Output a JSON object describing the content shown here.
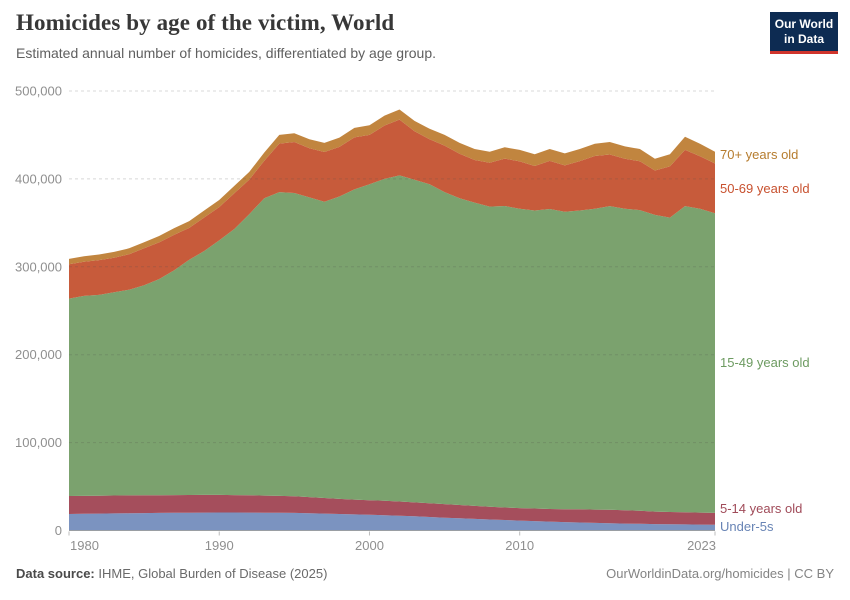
{
  "header": {
    "title": "Homicides by age of the victim, World",
    "subtitle": "Estimated annual number of homicides, differentiated by age group."
  },
  "logo": {
    "line1": "Our World",
    "line2": "in Data",
    "bg_color": "#0d2b52",
    "accent_color": "#d0342c"
  },
  "footer": {
    "source_label": "Data source:",
    "source_value": " IHME, Global Burden of Disease (2025)",
    "credit": "OurWorldinData.org/homicides | CC BY"
  },
  "chart_data": {
    "type": "area",
    "stacked": true,
    "title": "Homicides by age of the victim, World",
    "subtitle": "Estimated annual number of homicides, differentiated by age group.",
    "xlabel": "",
    "ylabel": "",
    "x_domain": [
      1980,
      2023
    ],
    "y_domain": [
      0,
      500000
    ],
    "grid": "horizontal-dashed",
    "legend_position": "right-of-plot",
    "tick_color": "#8f8f8f",
    "x": [
      1980,
      1981,
      1982,
      1983,
      1984,
      1985,
      1986,
      1987,
      1988,
      1989,
      1990,
      1991,
      1992,
      1993,
      1994,
      1995,
      1996,
      1997,
      1998,
      1999,
      2000,
      2001,
      2002,
      2003,
      2004,
      2005,
      2006,
      2007,
      2008,
      2009,
      2010,
      2011,
      2012,
      2013,
      2014,
      2015,
      2016,
      2017,
      2018,
      2019,
      2020,
      2021,
      2022,
      2023
    ],
    "x_ticks": [
      {
        "label": "1980",
        "year": 1980
      },
      {
        "label": "1990",
        "year": 1990
      },
      {
        "label": "2000",
        "year": 2000
      },
      {
        "label": "2010",
        "year": 2010
      },
      {
        "label": "2023",
        "year": 2023
      }
    ],
    "y_ticks": [
      {
        "label": "0",
        "value": 0
      },
      {
        "label": "100,000",
        "value": 100000
      },
      {
        "label": "200,000",
        "value": 200000
      },
      {
        "label": "300,000",
        "value": 300000
      },
      {
        "label": "400,000",
        "value": 400000
      },
      {
        "label": "500,000",
        "value": 500000
      }
    ],
    "series": [
      {
        "name": "Under-5s",
        "color": "#7b93c0",
        "label_color": "#6884b5",
        "values": [
          18800,
          19000,
          19200,
          19400,
          19600,
          19800,
          20000,
          20100,
          20300,
          20400,
          20500,
          20500,
          20400,
          20300,
          20100,
          20000,
          19600,
          19200,
          18800,
          18300,
          17900,
          17400,
          16800,
          16100,
          15400,
          14600,
          13900,
          13200,
          12500,
          11900,
          11300,
          10700,
          10100,
          9600,
          9100,
          8700,
          8300,
          7900,
          7600,
          7300,
          7000,
          6900,
          6700,
          6500
        ]
      },
      {
        "name": "5-14 years old",
        "color": "#a54e5c",
        "label_color": "#a04b59",
        "values": [
          20400,
          20400,
          20400,
          20400,
          20300,
          20200,
          20200,
          20200,
          20100,
          20100,
          20000,
          19800,
          19600,
          19400,
          19300,
          19000,
          18400,
          17800,
          17200,
          16900,
          16600,
          16500,
          16200,
          15900,
          15600,
          15400,
          15100,
          14800,
          14500,
          14300,
          14200,
          14300,
          14400,
          14500,
          15000,
          15100,
          15200,
          15100,
          14900,
          14200,
          14000,
          13900,
          13700,
          13500
        ]
      },
      {
        "name": "15-49 years old",
        "color": "#7ba26e",
        "label_color": "#6d9b61",
        "values": [
          224600,
          227500,
          228400,
          231300,
          234100,
          239000,
          245800,
          255700,
          267600,
          277500,
          289500,
          302700,
          320000,
          338300,
          345600,
          345000,
          341000,
          337000,
          344000,
          352800,
          359500,
          366100,
          371000,
          367000,
          363000,
          355000,
          349000,
          345000,
          341500,
          343000,
          340500,
          339000,
          341200,
          338600,
          339900,
          342200,
          345500,
          343000,
          342000,
          337500,
          335000,
          348200,
          345600,
          341000
        ]
      },
      {
        "name": "50-69 years old",
        "color": "#c75b3b",
        "label_color": "#c8512f",
        "values": [
          39200,
          38900,
          39600,
          39300,
          40200,
          42000,
          41800,
          40500,
          36300,
          38100,
          37900,
          40600,
          39200,
          42700,
          55200,
          58000,
          55800,
          56600,
          56400,
          59200,
          56000,
          60800,
          63500,
          55300,
          51100,
          52900,
          50700,
          48500,
          49800,
          53900,
          53900,
          50700,
          54800,
          52700,
          56200,
          60000,
          58800,
          56900,
          55500,
          50500,
          58200,
          64000,
          59800,
          56500
        ]
      },
      {
        "name": "70+ years old",
        "color": "#c1853f",
        "label_color": "#b67c2e",
        "values": [
          6000,
          6200,
          6400,
          6600,
          6800,
          7000,
          7200,
          7500,
          7700,
          7900,
          8100,
          8400,
          8800,
          9300,
          9800,
          10000,
          10200,
          10400,
          10600,
          10800,
          11000,
          11200,
          11500,
          11700,
          11900,
          12100,
          12300,
          12500,
          12700,
          12900,
          13100,
          13300,
          13500,
          13600,
          13800,
          14000,
          14200,
          14100,
          14000,
          13500,
          13800,
          15000,
          14200,
          13500
        ]
      }
    ]
  }
}
